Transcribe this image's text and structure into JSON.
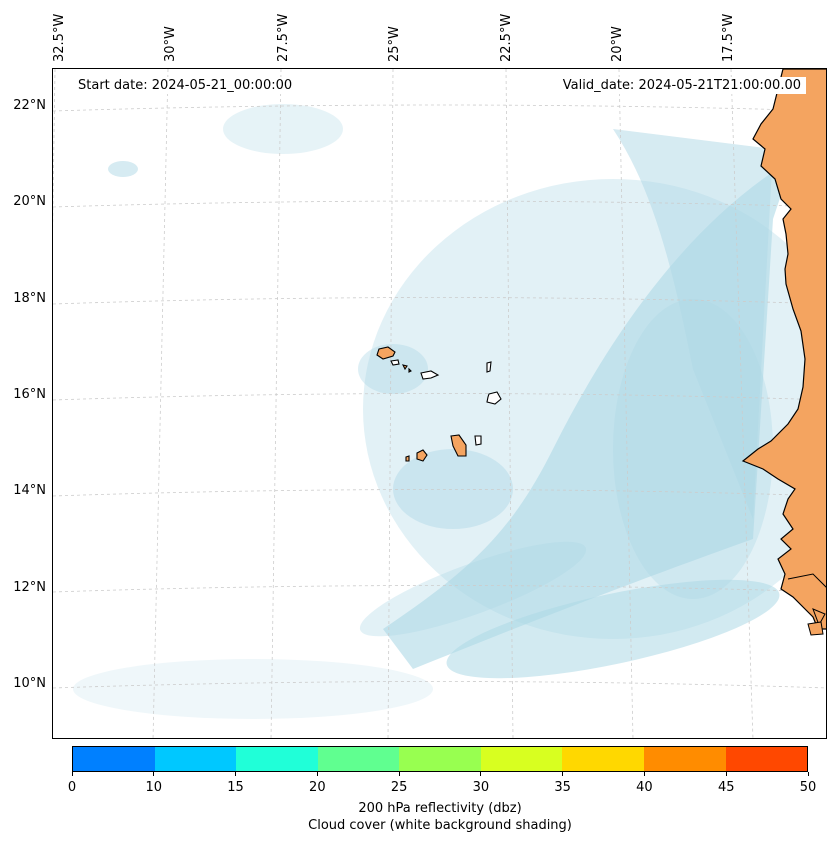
{
  "map": {
    "start_date": "Start date: 2024-05-21_00:00:00",
    "valid_date": "Valid_date: 2024-05-21T21:00:00.00",
    "longitude_labels": [
      "32.5°W",
      "30°W",
      "27.5°W",
      "25°W",
      "22.5°W",
      "20°W",
      "17.5°W"
    ],
    "latitude_labels": [
      "22°N",
      "20°N",
      "18°N",
      "16°N",
      "14°N",
      "12°N",
      "10°N"
    ],
    "colors": {
      "land": "#f4a460",
      "cloud": "#add8e6",
      "grid": "#cccccc"
    }
  },
  "colorbar": {
    "ticks": [
      "0",
      "10",
      "15",
      "20",
      "25",
      "30",
      "35",
      "40",
      "45",
      "50"
    ],
    "colors": [
      "#0080ff",
      "#00c8ff",
      "#20ffd8",
      "#60ff90",
      "#98ff50",
      "#d8ff20",
      "#ffd800",
      "#ff8c00",
      "#ff4800"
    ],
    "label": "200 hPa reflectivity (dbz)",
    "sublabel": "Cloud cover (white background shading)"
  }
}
